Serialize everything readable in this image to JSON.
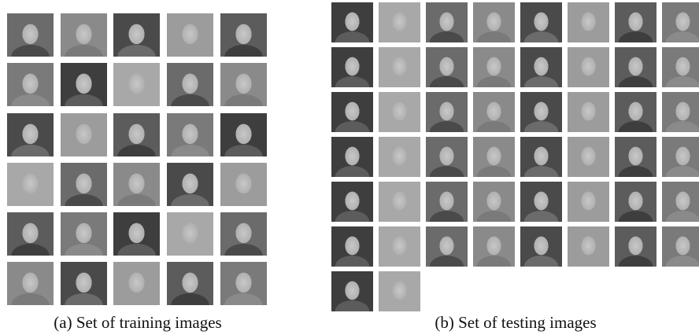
{
  "figure": {
    "subfigures": [
      {
        "caption": "(a) Set of training images"
      },
      {
        "caption": "(b) Set of testing images"
      }
    ]
  }
}
